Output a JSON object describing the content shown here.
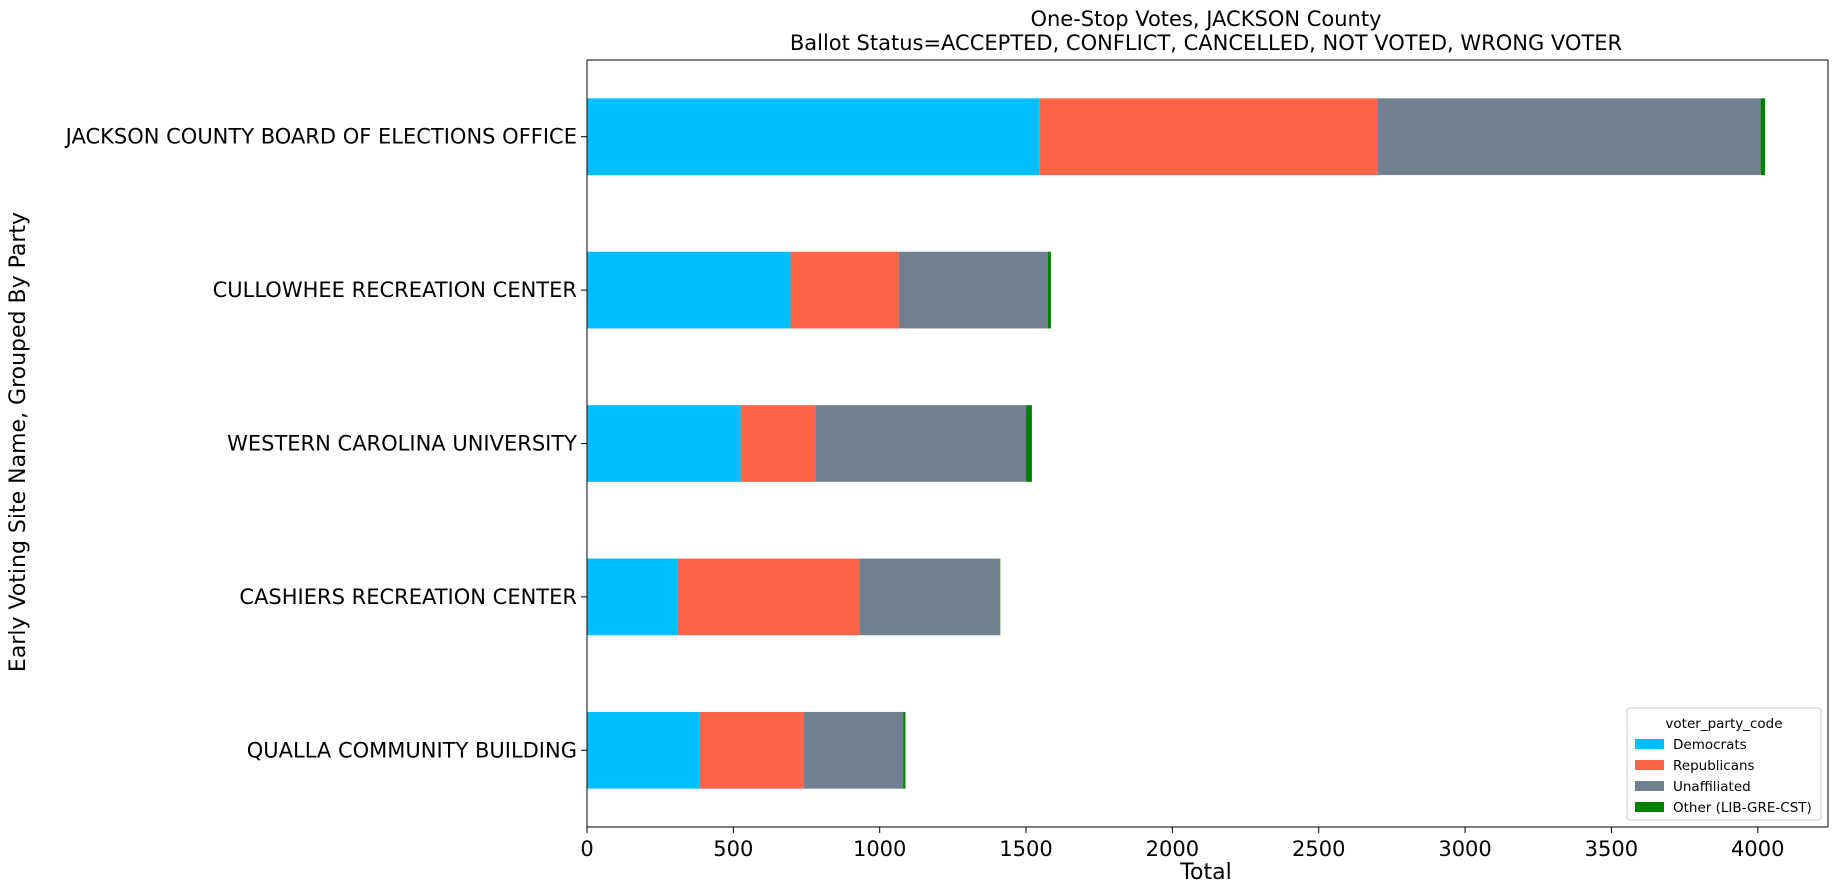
{
  "chart_data": {
    "type": "bar",
    "orientation": "horizontal",
    "stacked": true,
    "title": "One-Stop Votes, JACKSON County",
    "subtitle": "Ballot Status=ACCEPTED, CONFLICT, CANCELLED, NOT VOTED, WRONG VOTER",
    "xlabel": "Total",
    "ylabel": "Early Voting Site Name, Grouped By Party",
    "xlim": [
      0,
      4240
    ],
    "xticks": [
      0,
      500,
      1000,
      1500,
      2000,
      2500,
      3000,
      3500,
      4000
    ],
    "grid": false,
    "legend_title": "voter_party_code",
    "legend_position": "lower-right",
    "categories": [
      "JACKSON COUNTY BOARD OF ELECTIONS OFFICE",
      "CULLOWHEE RECREATION CENTER",
      "WESTERN CAROLINA UNIVERSITY",
      "CASHIERS RECREATION CENTER",
      "QUALLA COMMUNITY BUILDING"
    ],
    "series": [
      {
        "name": "Democrats",
        "color": "#00bfff",
        "values": [
          1545,
          695,
          525,
          310,
          385
        ]
      },
      {
        "name": "Republicans",
        "color": "#ff6347",
        "values": [
          1155,
          370,
          255,
          620,
          355
        ]
      },
      {
        "name": "Unaffiliated",
        "color": "#708090",
        "values": [
          1310,
          510,
          720,
          480,
          340
        ]
      },
      {
        "name": "Other (LIB-GRE-CST)",
        "color": "#008000",
        "values": [
          15,
          10,
          20,
          2,
          8
        ]
      }
    ]
  }
}
